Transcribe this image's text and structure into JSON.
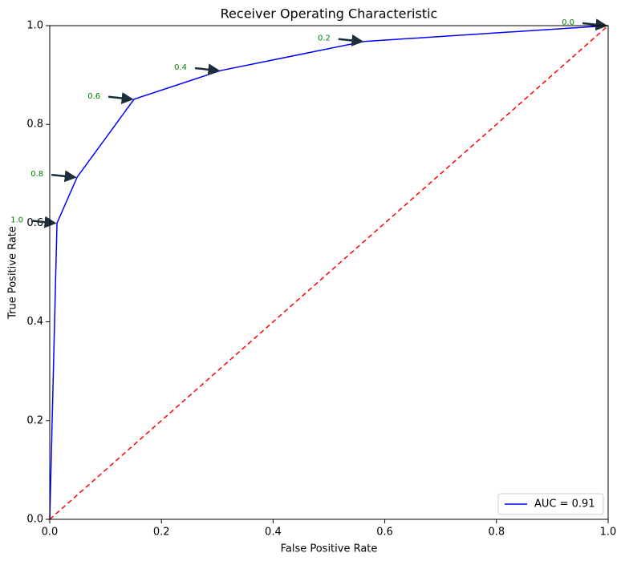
{
  "chart_data": {
    "type": "line",
    "title": "Receiver Operating Characteristic",
    "x_label": "False Positive Rate",
    "y_label": "True Positive Rate",
    "xlim": [
      0,
      1
    ],
    "ylim": [
      0,
      1
    ],
    "xticks": [
      {
        "value": 0,
        "label": "0.0"
      },
      0.2,
      0.4,
      0.6,
      0.8,
      {
        "value": 1,
        "label": "1.0"
      }
    ],
    "yticks": [
      {
        "value": 0,
        "label": "0.0"
      },
      0.2,
      0.4,
      0.6,
      0.8,
      {
        "value": 1,
        "label": "1.0"
      }
    ],
    "legend": "lower right",
    "series": [
      {
        "name": "AUC = 0.91",
        "color": "#0000ff",
        "dash": false,
        "x": [
          0,
          0.013,
          0.049,
          0.151,
          0.306,
          0.563,
          1
        ],
        "values": [
          0,
          0.6,
          0.693,
          0.851,
          0.909,
          0.968,
          1
        ],
        "point_labels": [
          null,
          "1.0",
          "0.8",
          "0.6",
          "0.4",
          "0.2",
          "0.0"
        ]
      },
      {
        "color": "#ff0000",
        "dash": true,
        "x": [
          0,
          1
        ],
        "values": [
          0,
          1
        ]
      }
    ]
  }
}
